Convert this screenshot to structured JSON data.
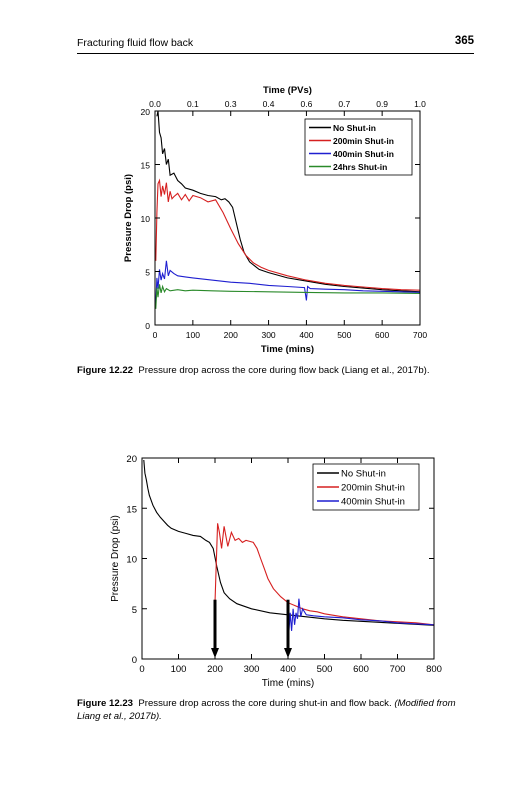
{
  "header": {
    "running_title": "Fracturing fluid flow back",
    "page_number": "365"
  },
  "figures": [
    {
      "label": "Figure 12.22",
      "caption": "Pressure drop across the core during flow back (Liang et al., 2017b)."
    },
    {
      "label": "Figure 12.23",
      "caption": "Pressure drop across the core during shut-in and flow back.",
      "caption_italic": "(Modified from Liang et al., 2017b)."
    }
  ],
  "chart_data": [
    {
      "type": "line",
      "xlabel": "Time (mins)",
      "ylabel": "Pressure Drop (psi)",
      "x2label": "Time (PVs)",
      "xlim": [
        0,
        700
      ],
      "ylim": [
        0,
        20
      ],
      "x_ticks": [
        "0",
        "100",
        "200",
        "300",
        "400",
        "500",
        "600",
        "700"
      ],
      "y_ticks": [
        "0",
        "5",
        "10",
        "15",
        "20"
      ],
      "x2_ticks": [
        "0.0",
        "0.1",
        "0.3",
        "0.4",
        "0.6",
        "0.7",
        "0.9",
        "1.0"
      ],
      "x2_positions": [
        0,
        100,
        200,
        300,
        400,
        500,
        600,
        700
      ],
      "legend_position": "top-right",
      "grid": false,
      "series": [
        {
          "name": "No Shut-in",
          "color": "#000000",
          "x": [
            5,
            8,
            12,
            16,
            20,
            25,
            30,
            35,
            40,
            50,
            60,
            70,
            80,
            100,
            120,
            140,
            160,
            175,
            185,
            195,
            205,
            215,
            225,
            235,
            250,
            275,
            300,
            350,
            400,
            450,
            500,
            550,
            600,
            650,
            700
          ],
          "y": [
            19.5,
            20,
            18,
            17.5,
            16,
            16.5,
            15,
            15.5,
            14,
            14.2,
            13.5,
            13.2,
            12.8,
            12.6,
            12.3,
            12.1,
            12,
            11.7,
            11.8,
            11.5,
            11,
            9.5,
            8,
            6.8,
            5.9,
            5.2,
            4.9,
            4.4,
            4.1,
            3.8,
            3.6,
            3.45,
            3.3,
            3.2,
            3.1
          ]
        },
        {
          "name": "200min Shut-in",
          "color": "#d62020",
          "x": [
            2,
            5,
            8,
            12,
            16,
            20,
            25,
            30,
            35,
            40,
            45,
            50,
            60,
            70,
            80,
            90,
            100,
            110,
            120,
            140,
            160,
            180,
            200,
            220,
            240,
            260,
            280,
            300,
            350,
            400,
            450,
            500,
            550,
            600,
            650,
            700
          ],
          "y": [
            6,
            10.5,
            13.2,
            13.5,
            12,
            13,
            12.2,
            13.3,
            11.5,
            12.5,
            11.8,
            12,
            12.3,
            11.7,
            12.2,
            11.6,
            12.1,
            12,
            11.9,
            11.5,
            11.7,
            10.5,
            9,
            7.6,
            6.5,
            5.8,
            5.4,
            5.1,
            4.6,
            4.2,
            3.9,
            3.7,
            3.55,
            3.4,
            3.3,
            3.25
          ]
        },
        {
          "name": "400min Shut-in",
          "color": "#1f1fd0",
          "x": [
            2,
            5,
            8,
            12,
            16,
            20,
            25,
            30,
            35,
            40,
            50,
            60,
            80,
            100,
            150,
            200,
            250,
            300,
            350,
            395,
            400,
            403,
            410,
            450,
            500,
            550,
            600,
            650,
            700
          ],
          "y": [
            2,
            4.4,
            3.4,
            5.2,
            4.2,
            4.8,
            4.3,
            6,
            4.6,
            5.1,
            4.8,
            4.6,
            4.5,
            4.4,
            4.2,
            4,
            3.9,
            3.7,
            3.6,
            3.5,
            2.3,
            3.6,
            3.4,
            3.35,
            3.3,
            3.2,
            3.15,
            3.1,
            3.05
          ]
        },
        {
          "name": "24hrs Shut-in",
          "color": "#2a8a2a",
          "x": [
            2,
            5,
            8,
            12,
            16,
            20,
            25,
            30,
            40,
            60,
            80,
            100,
            150,
            200,
            300,
            400,
            500,
            600,
            700
          ],
          "y": [
            1.5,
            3.5,
            2.6,
            3.8,
            3,
            3.6,
            3.1,
            3.4,
            3.2,
            3.3,
            3.2,
            3.25,
            3.2,
            3.15,
            3.1,
            3.05,
            3,
            3,
            2.95
          ]
        }
      ]
    },
    {
      "type": "line",
      "xlabel": "Time (mins)",
      "ylabel": "Pressure Drop (psi)",
      "xlim": [
        0,
        800
      ],
      "ylim": [
        0,
        20
      ],
      "x_ticks": [
        "0",
        "100",
        "200",
        "300",
        "400",
        "500",
        "600",
        "700",
        "800"
      ],
      "y_ticks": [
        "0",
        "5",
        "10",
        "15",
        "20"
      ],
      "legend_position": "top-right",
      "grid": false,
      "arrows_at_x": [
        200,
        400
      ],
      "series": [
        {
          "name": "No Shut-in",
          "color": "#000000",
          "x": [
            5,
            8,
            12,
            16,
            20,
            25,
            30,
            40,
            50,
            60,
            70,
            80,
            100,
            120,
            140,
            160,
            175,
            185,
            195,
            205,
            215,
            225,
            240,
            260,
            300,
            350,
            400,
            450,
            500,
            550,
            600,
            650,
            700,
            750,
            800
          ],
          "y": [
            19.8,
            18.5,
            17.8,
            17,
            16.3,
            15.8,
            15.3,
            14.6,
            14.1,
            13.7,
            13.3,
            13,
            12.7,
            12.5,
            12.3,
            12.2,
            11.8,
            11.6,
            11,
            9.2,
            7.6,
            6.6,
            6,
            5.5,
            5,
            4.6,
            4.4,
            4.2,
            4,
            3.85,
            3.75,
            3.65,
            3.55,
            3.45,
            3.35
          ]
        },
        {
          "name": "200min Shut-in",
          "color": "#d62020",
          "x": [
            200,
            203,
            207,
            212,
            218,
            225,
            235,
            245,
            255,
            265,
            275,
            285,
            295,
            305,
            315,
            325,
            335,
            345,
            360,
            380,
            400,
            420,
            440,
            460,
            480,
            500,
            550,
            600,
            650,
            700,
            750,
            800
          ],
          "y": [
            5.6,
            9,
            13.5,
            12.6,
            11,
            13.2,
            11.2,
            12.6,
            11.8,
            12,
            11.6,
            11.8,
            11.7,
            11.6,
            11,
            10,
            9,
            8,
            7,
            6.2,
            5.6,
            5.3,
            5,
            4.8,
            4.7,
            4.5,
            4.2,
            4,
            3.8,
            3.7,
            3.6,
            3.4
          ]
        },
        {
          "name": "400min Shut-in",
          "color": "#1f1fd0",
          "x": [
            400,
            403,
            406,
            410,
            414,
            418,
            422,
            426,
            430,
            435,
            440,
            450,
            470,
            500,
            550,
            600,
            650,
            700,
            750,
            800
          ],
          "y": [
            1.5,
            3,
            4.6,
            2.8,
            5,
            3.4,
            4.6,
            4,
            6,
            4.2,
            5,
            4.4,
            4.3,
            4.2,
            4.1,
            3.9,
            3.8,
            3.6,
            3.5,
            3.4
          ]
        }
      ]
    }
  ]
}
